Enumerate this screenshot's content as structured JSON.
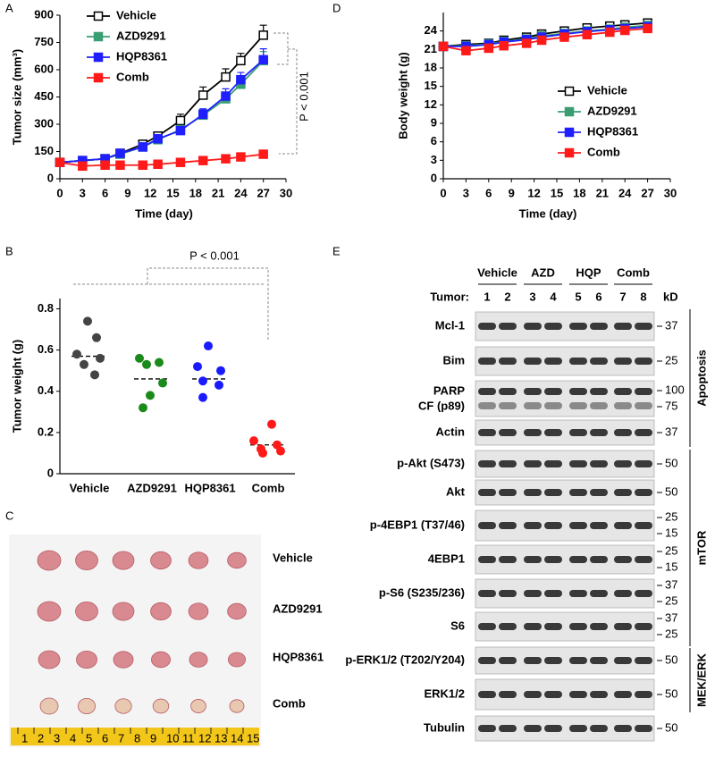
{
  "panels": [
    "A",
    "B",
    "C",
    "D",
    "E"
  ],
  "chart_data": [
    {
      "type": "line",
      "xlabel": "Time (day)",
      "ylabel": "Tumor size (mm³)",
      "x": [
        0,
        3,
        6,
        8,
        11,
        13,
        16,
        19,
        22,
        24,
        27
      ],
      "xlim": [
        0,
        30
      ],
      "xticks": [
        0,
        3,
        6,
        9,
        12,
        15,
        18,
        21,
        24,
        27,
        30
      ],
      "ylim": [
        0,
        900
      ],
      "yticks": [
        0,
        150,
        300,
        450,
        600,
        750,
        900
      ],
      "legend": "upper left",
      "annotation": "P < 0.001",
      "series": [
        {
          "name": "Vehicle",
          "color": "#000000",
          "marker": "open-square",
          "values": [
            90,
            100,
            110,
            140,
            190,
            235,
            320,
            460,
            560,
            650,
            790
          ],
          "errors": [
            10,
            10,
            10,
            15,
            20,
            20,
            35,
            45,
            45,
            40,
            55
          ]
        },
        {
          "name": "AZD9291",
          "color": "#3a9e73",
          "marker": "square",
          "values": [
            90,
            100,
            110,
            135,
            175,
            215,
            270,
            350,
            440,
            520,
            650
          ],
          "errors": [
            10,
            10,
            10,
            10,
            15,
            15,
            20,
            30,
            35,
            35,
            50
          ]
        },
        {
          "name": "HQP8361",
          "color": "#1f1fff",
          "marker": "square",
          "values": [
            90,
            100,
            110,
            140,
            175,
            220,
            265,
            355,
            455,
            545,
            655
          ],
          "errors": [
            10,
            10,
            10,
            10,
            15,
            20,
            20,
            30,
            40,
            40,
            60
          ]
        },
        {
          "name": "Comb",
          "color": "#ff1a1a",
          "marker": "square",
          "values": [
            90,
            70,
            75,
            75,
            75,
            80,
            90,
            100,
            110,
            120,
            135
          ],
          "errors": [
            10,
            10,
            10,
            10,
            10,
            10,
            10,
            10,
            15,
            20,
            20
          ]
        }
      ]
    },
    {
      "type": "strip",
      "ylabel": "Tumor weight (g)",
      "categories": [
        "Vehicle",
        "AZD9291",
        "HQP8361",
        "Comb"
      ],
      "ylim": [
        0,
        0.85
      ],
      "yticks": [
        0,
        0.2,
        0.4,
        0.6,
        0.8
      ],
      "colors": [
        "#444444",
        "#1a8a1a",
        "#1a1aff",
        "#ff1a1a"
      ],
      "points": [
        [
          0.74,
          0.66,
          0.58,
          0.56,
          0.53,
          0.48
        ],
        [
          0.56,
          0.54,
          0.53,
          0.44,
          0.38,
          0.32
        ],
        [
          0.62,
          0.52,
          0.5,
          0.45,
          0.43,
          0.37
        ],
        [
          0.24,
          0.16,
          0.14,
          0.12,
          0.11,
          0.1
        ]
      ],
      "means": [
        0.57,
        0.46,
        0.46,
        0.14
      ],
      "annotation": "P < 0.001"
    },
    {
      "type": "line",
      "xlabel": "Time (day)",
      "ylabel": "Body weight (g)",
      "x": [
        0,
        3,
        6,
        8,
        11,
        13,
        16,
        19,
        22,
        24,
        27
      ],
      "xlim": [
        0,
        30
      ],
      "xticks": [
        0,
        3,
        6,
        9,
        12,
        15,
        18,
        21,
        24,
        27,
        30
      ],
      "ylim": [
        0,
        27
      ],
      "yticks": [
        0,
        3,
        6,
        9,
        12,
        15,
        18,
        21,
        24
      ],
      "legend": "center right",
      "series": [
        {
          "name": "Vehicle",
          "color": "#000000",
          "marker": "open-square",
          "values": [
            21.5,
            21.8,
            22,
            22.5,
            23,
            23.5,
            24,
            24.5,
            24.8,
            25,
            25.3
          ]
        },
        {
          "name": "AZD9291",
          "color": "#3a9e73",
          "marker": "square",
          "values": [
            21.5,
            21.6,
            21.9,
            22.3,
            22.7,
            23.2,
            23.6,
            24,
            24.3,
            24.6,
            24.9
          ]
        },
        {
          "name": "HQP8361",
          "color": "#1f1fff",
          "marker": "square",
          "values": [
            21.5,
            21.5,
            21.8,
            22.2,
            22.6,
            23,
            23.5,
            23.9,
            24.2,
            24.4,
            24.7
          ]
        },
        {
          "name": "Comb",
          "color": "#ff1a1a",
          "marker": "square",
          "values": [
            21.5,
            20.8,
            21.2,
            21.6,
            22,
            22.5,
            23,
            23.4,
            23.8,
            24.1,
            24.4
          ]
        }
      ]
    }
  ],
  "photo": {
    "groups": [
      "Vehicle",
      "AZD9291",
      "HQP8361",
      "Comb"
    ],
    "ruler": [
      1,
      2,
      3,
      4,
      5,
      6,
      7,
      8,
      9,
      10,
      11,
      12,
      13,
      14,
      15
    ]
  },
  "blot": {
    "groups": [
      "Vehicle",
      "AZD",
      "HQP",
      "Comb"
    ],
    "lane_title": "Tumor:",
    "lanes": [
      1,
      2,
      3,
      4,
      5,
      6,
      7,
      8
    ],
    "unit": "kD",
    "sections": [
      "Apoptosis",
      "mTOR",
      "MEK/ERK"
    ],
    "rows": [
      {
        "label": "Mcl-1",
        "markers": [
          37
        ]
      },
      {
        "label": "Bim",
        "markers": [
          25
        ]
      },
      {
        "label": "PARP",
        "sublabel": "CF (p89)",
        "markers": [
          100,
          75
        ]
      },
      {
        "label": "Actin",
        "markers": [
          37
        ]
      },
      {
        "label": "p-Akt (S473)",
        "markers": [
          50
        ]
      },
      {
        "label": "Akt",
        "markers": [
          50
        ]
      },
      {
        "label": "p-4EBP1 (T37/46)",
        "markers": [
          25,
          15
        ]
      },
      {
        "label": "4EBP1",
        "markers": [
          25,
          15
        ]
      },
      {
        "label": "p-S6 (S235/236)",
        "markers": [
          37,
          25
        ]
      },
      {
        "label": "S6",
        "markers": [
          37,
          25
        ]
      },
      {
        "label": "p-ERK1/2 (T202/Y204)",
        "markers": [
          50
        ]
      },
      {
        "label": "ERK1/2",
        "markers": [
          50
        ]
      },
      {
        "label": "Tubulin",
        "markers": [
          50
        ]
      }
    ]
  }
}
